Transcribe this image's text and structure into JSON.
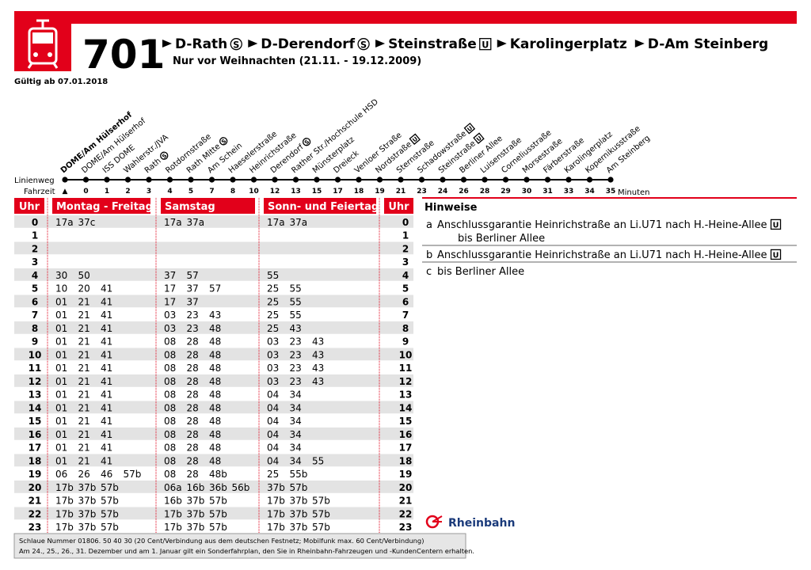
{
  "header": {
    "line": "701",
    "route": [
      {
        "name": "D-Rath",
        "icon": "S"
      },
      {
        "name": "D-Derendorf",
        "icon": "S"
      },
      {
        "name": "Steinstraße",
        "icon": "U"
      },
      {
        "name": "Karolingerplatz"
      },
      {
        "name": "D-Am Steinberg"
      }
    ],
    "subtitle": "Nur vor Weihnachten (21.11. - 19.12.2009)",
    "valid": "Gültig ab 07.01.2018"
  },
  "stops": {
    "linienweg_label": "Linienweg",
    "fahrzeit_label": "Fahrzeit",
    "minutes_label": "Minuten",
    "items": [
      {
        "name": "DOME/Am Hülserhof",
        "time": "▲"
      },
      {
        "name": "DOME/Am Hülserhof",
        "time": 0
      },
      {
        "name": "ISS DOME",
        "time": 1
      },
      {
        "name": "Wahlerstr./JVA",
        "time": 2
      },
      {
        "name": "Rath",
        "icon": "S",
        "time": 3
      },
      {
        "name": "Rotdornstraße",
        "time": 4
      },
      {
        "name": "Rath Mitte",
        "icon": "S",
        "time": 5
      },
      {
        "name": "Am Schein",
        "time": 7
      },
      {
        "name": "Haeselerstraße",
        "time": 8
      },
      {
        "name": "Heinrichstraße",
        "time": 10
      },
      {
        "name": "Derendorf",
        "icon": "S",
        "time": 12
      },
      {
        "name": "Rather Str./Hochschule HSD",
        "time": 13
      },
      {
        "name": "Münsterplatz",
        "time": 15
      },
      {
        "name": "Dreieck",
        "time": 17
      },
      {
        "name": "Venloer Straße",
        "time": 18
      },
      {
        "name": "Nordstraße",
        "icon": "U",
        "time": 19
      },
      {
        "name": "Sternstraße",
        "time": 21
      },
      {
        "name": "Schadowstraße",
        "icon": "U",
        "time": 23
      },
      {
        "name": "Steinstraße",
        "icon": "U",
        "time": 24
      },
      {
        "name": "Berliner Allee",
        "time": 26
      },
      {
        "name": "Luisenstraße",
        "time": 28
      },
      {
        "name": "Corneliusstraße",
        "time": 29
      },
      {
        "name": "Morsestraße",
        "time": 30
      },
      {
        "name": "Färberstraße",
        "time": 31
      },
      {
        "name": "Karolingerplatz",
        "time": 33
      },
      {
        "name": "Kopernikusstraße",
        "time": 34
      },
      {
        "name": "Am Steinberg",
        "time": 35
      }
    ]
  },
  "table": {
    "headers": [
      "Uhr",
      "Montag - Freitag",
      "Samstag",
      "Sonn- und Feiertag",
      "Uhr"
    ],
    "rows": [
      {
        "hour": 0,
        "weekday": [
          "17a",
          "37c"
        ],
        "saturday": [
          "17a",
          "37a"
        ],
        "sunday": [
          "17a",
          "37a"
        ]
      },
      {
        "hour": 1,
        "weekday": [],
        "saturday": [],
        "sunday": []
      },
      {
        "hour": 2,
        "weekday": [],
        "saturday": [],
        "sunday": []
      },
      {
        "hour": 3,
        "weekday": [],
        "saturday": [],
        "sunday": []
      },
      {
        "hour": 4,
        "weekday": [
          "30",
          "50"
        ],
        "saturday": [
          "37",
          "57"
        ],
        "sunday": [
          "55"
        ]
      },
      {
        "hour": 5,
        "weekday": [
          "10",
          "20",
          "41"
        ],
        "saturday": [
          "17",
          "37",
          "57"
        ],
        "sunday": [
          "25",
          "55"
        ]
      },
      {
        "hour": 6,
        "weekday": [
          "01",
          "21",
          "41"
        ],
        "saturday": [
          "17",
          "37"
        ],
        "sunday": [
          "25",
          "55"
        ]
      },
      {
        "hour": 7,
        "weekday": [
          "01",
          "21",
          "41"
        ],
        "saturday": [
          "03",
          "23",
          "43"
        ],
        "sunday": [
          "25",
          "55"
        ]
      },
      {
        "hour": 8,
        "weekday": [
          "01",
          "21",
          "41"
        ],
        "saturday": [
          "03",
          "23",
          "48"
        ],
        "sunday": [
          "25",
          "43"
        ]
      },
      {
        "hour": 9,
        "weekday": [
          "01",
          "21",
          "41"
        ],
        "saturday": [
          "08",
          "28",
          "48"
        ],
        "sunday": [
          "03",
          "23",
          "43"
        ]
      },
      {
        "hour": 10,
        "weekday": [
          "01",
          "21",
          "41"
        ],
        "saturday": [
          "08",
          "28",
          "48"
        ],
        "sunday": [
          "03",
          "23",
          "43"
        ]
      },
      {
        "hour": 11,
        "weekday": [
          "01",
          "21",
          "41"
        ],
        "saturday": [
          "08",
          "28",
          "48"
        ],
        "sunday": [
          "03",
          "23",
          "43"
        ]
      },
      {
        "hour": 12,
        "weekday": [
          "01",
          "21",
          "41"
        ],
        "saturday": [
          "08",
          "28",
          "48"
        ],
        "sunday": [
          "03",
          "23",
          "43"
        ]
      },
      {
        "hour": 13,
        "weekday": [
          "01",
          "21",
          "41"
        ],
        "saturday": [
          "08",
          "28",
          "48"
        ],
        "sunday": [
          "04",
          "34"
        ]
      },
      {
        "hour": 14,
        "weekday": [
          "01",
          "21",
          "41"
        ],
        "saturday": [
          "08",
          "28",
          "48"
        ],
        "sunday": [
          "04",
          "34"
        ]
      },
      {
        "hour": 15,
        "weekday": [
          "01",
          "21",
          "41"
        ],
        "saturday": [
          "08",
          "28",
          "48"
        ],
        "sunday": [
          "04",
          "34"
        ]
      },
      {
        "hour": 16,
        "weekday": [
          "01",
          "21",
          "41"
        ],
        "saturday": [
          "08",
          "28",
          "48"
        ],
        "sunday": [
          "04",
          "34"
        ]
      },
      {
        "hour": 17,
        "weekday": [
          "01",
          "21",
          "41"
        ],
        "saturday": [
          "08",
          "28",
          "48"
        ],
        "sunday": [
          "04",
          "34"
        ]
      },
      {
        "hour": 18,
        "weekday": [
          "01",
          "21",
          "41"
        ],
        "saturday": [
          "08",
          "28",
          "48"
        ],
        "sunday": [
          "04",
          "34",
          "55"
        ]
      },
      {
        "hour": 19,
        "weekday": [
          "06",
          "26",
          "46",
          "57b"
        ],
        "saturday": [
          "08",
          "28",
          "48b"
        ],
        "sunday": [
          "25",
          "55b"
        ]
      },
      {
        "hour": 20,
        "weekday": [
          "17b",
          "37b",
          "57b"
        ],
        "saturday": [
          "06a",
          "16b",
          "36b",
          "56b"
        ],
        "sunday": [
          "37b",
          "57b"
        ]
      },
      {
        "hour": 21,
        "weekday": [
          "17b",
          "37b",
          "57b"
        ],
        "saturday": [
          "16b",
          "37b",
          "57b"
        ],
        "sunday": [
          "17b",
          "37b",
          "57b"
        ]
      },
      {
        "hour": 22,
        "weekday": [
          "17b",
          "37b",
          "57b"
        ],
        "saturday": [
          "17b",
          "37b",
          "57b"
        ],
        "sunday": [
          "17b",
          "37b",
          "57b"
        ]
      },
      {
        "hour": 23,
        "weekday": [
          "17b",
          "37b",
          "57b"
        ],
        "saturday": [
          "17b",
          "37b",
          "57b"
        ],
        "sunday": [
          "17b",
          "37b",
          "57b"
        ]
      }
    ]
  },
  "notes": {
    "title": "Hinweise",
    "items": [
      {
        "key": "a",
        "text": "Anschlussgarantie Heinrichstraße an Li.U71 nach H.-Heine-Allee",
        "icon": "U",
        "continuation": "bis Berliner Allee"
      },
      {
        "key": "b",
        "text": "Anschlussgarantie Heinrichstraße an Li.U71 nach H.-Heine-Allee",
        "icon": "U"
      },
      {
        "key": "c",
        "text": "bis Berliner Allee"
      }
    ]
  },
  "logo": "Rheinbahn",
  "footer": [
    "Schlaue Nummer 01806. 50 40 30 (20 Cent/Verbindung aus dem deutschen Festnetz; Mobilfunk max. 60 Cent/Verbindung)",
    "Am 24., 25., 26., 31. Dezember und am 1. Januar gilt ein Sonderfahrplan, den Sie in Rheinbahn-Fahrzeugen und -KundenCentern erhalten."
  ]
}
